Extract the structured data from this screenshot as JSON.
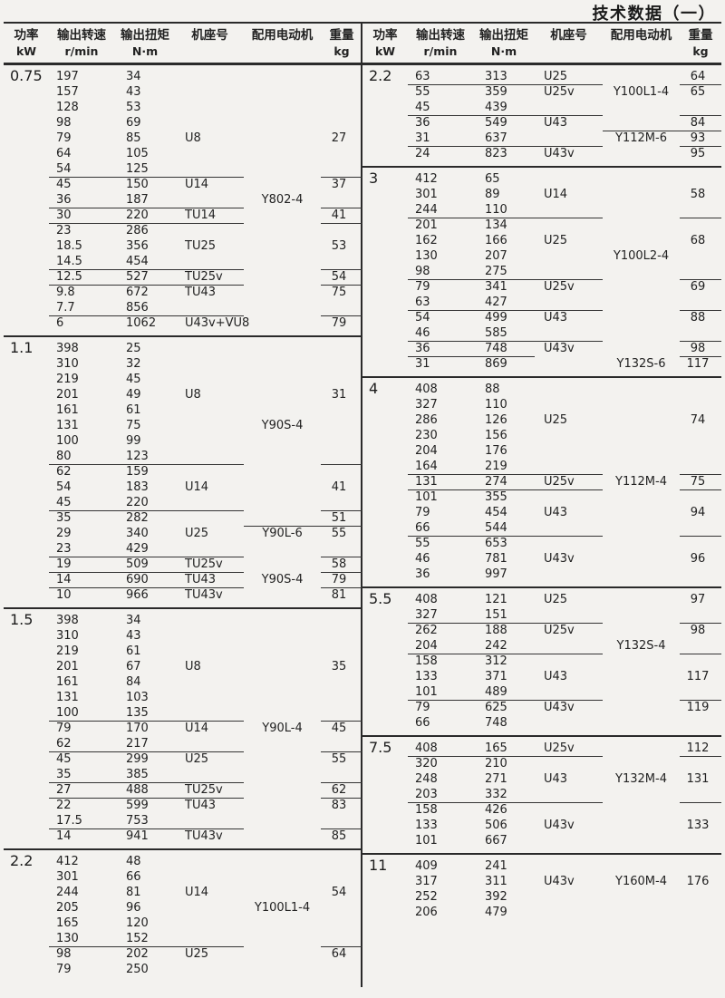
{
  "title": "技术数据（一）",
  "colors": {
    "ink": "#2a2a2a",
    "paper": "#f3f2ef"
  },
  "header": {
    "cols": [
      {
        "l1": "功率",
        "l2": "kW"
      },
      {
        "l1": "输出转速",
        "l2": "r/min"
      },
      {
        "l1": "输出扭矩",
        "l2": "N·m"
      },
      {
        "l1": "机座号",
        "l2": ""
      },
      {
        "l1": "配用电动机",
        "l2": ""
      },
      {
        "l1": "重量",
        "l2": "kg"
      }
    ]
  },
  "table": {
    "left_sections": [
      {
        "power": "0.75",
        "rows": [
          {
            "s": "197",
            "t": "34"
          },
          {
            "s": "157",
            "t": "43"
          },
          {
            "s": "128",
            "t": "53"
          },
          {
            "s": "98",
            "t": "69"
          },
          {
            "s": "79",
            "t": "85",
            "f": "U8",
            "w": "27"
          },
          {
            "s": "64",
            "t": "105"
          },
          {
            "s": "54",
            "t": "125",
            "L": "ld lw"
          },
          {
            "s": "45",
            "t": "150",
            "f": "U14",
            "w": "37"
          },
          {
            "s": "36",
            "t": "187",
            "m": "Y802-4",
            "L": "ld lw"
          },
          {
            "s": "30",
            "t": "220",
            "f": "TU14",
            "w": "41",
            "L": "ld lw"
          },
          {
            "s": "23",
            "t": "286"
          },
          {
            "s": "18.5",
            "t": "356",
            "f": "TU25",
            "w": "53"
          },
          {
            "s": "14.5",
            "t": "454",
            "L": "ld lw"
          },
          {
            "s": "12.5",
            "t": "527",
            "f": "TU25v",
            "w": "54",
            "L": "ld lw"
          },
          {
            "s": "9.8",
            "t": "672",
            "f": "TU43",
            "w": "75"
          },
          {
            "s": "7.7",
            "t": "856",
            "L": "ld lw"
          },
          {
            "s": "6",
            "t": "1062",
            "f": "U43v+VU8",
            "w": "79"
          }
        ]
      },
      {
        "power": "1.1",
        "rows": [
          {
            "s": "398",
            "t": "25"
          },
          {
            "s": "310",
            "t": "32"
          },
          {
            "s": "219",
            "t": "45"
          },
          {
            "s": "201",
            "t": "49",
            "f": "U8",
            "w": "31"
          },
          {
            "s": "161",
            "t": "61"
          },
          {
            "s": "131",
            "t": "75",
            "m": "Y90S-4"
          },
          {
            "s": "100",
            "t": "99"
          },
          {
            "s": "80",
            "t": "123",
            "L": "ld lw"
          },
          {
            "s": "62",
            "t": "159"
          },
          {
            "s": "54",
            "t": "183",
            "f": "U14",
            "w": "41"
          },
          {
            "s": "45",
            "t": "220",
            "L": "ld lw"
          },
          {
            "s": "35",
            "t": "282",
            "w": "51",
            "L": "lm lw"
          },
          {
            "s": "29",
            "t": "340",
            "f": "U25",
            "m": "Y90L-6",
            "w": "55"
          },
          {
            "s": "23",
            "t": "429",
            "L": "ld lw"
          },
          {
            "s": "19",
            "t": "509",
            "f": "TU25v",
            "w": "58",
            "L": "ld lw"
          },
          {
            "s": "14",
            "t": "690",
            "f": "TU43",
            "m": "Y90S-4",
            "w": "79",
            "L": "ld lw"
          },
          {
            "s": "10",
            "t": "966",
            "f": "TU43v",
            "w": "81"
          }
        ]
      },
      {
        "power": "1.5",
        "rows": [
          {
            "s": "398",
            "t": "34"
          },
          {
            "s": "310",
            "t": "43"
          },
          {
            "s": "219",
            "t": "61"
          },
          {
            "s": "201",
            "t": "67",
            "f": "U8",
            "w": "35"
          },
          {
            "s": "161",
            "t": "84"
          },
          {
            "s": "131",
            "t": "103"
          },
          {
            "s": "100",
            "t": "135",
            "L": "ld lw"
          },
          {
            "s": "79",
            "t": "170",
            "f": "U14",
            "m": "Y90L-4",
            "w": "45"
          },
          {
            "s": "62",
            "t": "217",
            "L": "ld lw"
          },
          {
            "s": "45",
            "t": "299",
            "f": "U25",
            "w": "55"
          },
          {
            "s": "35",
            "t": "385",
            "L": "ld lw"
          },
          {
            "s": "27",
            "t": "488",
            "f": "TU25v",
            "w": "62",
            "L": "ld lw"
          },
          {
            "s": "22",
            "t": "599",
            "f": "TU43",
            "w": "83"
          },
          {
            "s": "17.5",
            "t": "753",
            "L": "ld lw"
          },
          {
            "s": "14",
            "t": "941",
            "f": "TU43v",
            "w": "85"
          }
        ]
      },
      {
        "power": "2.2",
        "rows": [
          {
            "s": "412",
            "t": "48"
          },
          {
            "s": "301",
            "t": "66"
          },
          {
            "s": "244",
            "t": "81",
            "f": "U14",
            "w": "54"
          },
          {
            "s": "205",
            "t": "96",
            "m": "Y100L1-4"
          },
          {
            "s": "165",
            "t": "120"
          },
          {
            "s": "130",
            "t": "152",
            "L": "ld lw"
          },
          {
            "s": "98",
            "t": "202",
            "f": "U25",
            "w": "64"
          },
          {
            "s": "79",
            "t": "250"
          }
        ]
      }
    ],
    "right_sections": [
      {
        "power": "2.2",
        "rows": [
          {
            "s": "63",
            "t": "313",
            "f": "U25",
            "w": "64",
            "L": "ld lw"
          },
          {
            "s": "55",
            "t": "359",
            "f": "U25v",
            "m": "Y100L1-4",
            "w": "65"
          },
          {
            "s": "45",
            "t": "439",
            "L": "ld lw"
          },
          {
            "s": "36",
            "t": "549",
            "f": "U43",
            "w": "84",
            "L": "lm lw"
          },
          {
            "s": "31",
            "t": "637",
            "m": "Y112M-6",
            "w": "93",
            "L": "ld lw"
          },
          {
            "s": "24",
            "t": "823",
            "f": "U43v",
            "w": "95"
          }
        ]
      },
      {
        "power": "3",
        "rows": [
          {
            "s": "412",
            "t": "65"
          },
          {
            "s": "301",
            "t": "89",
            "f": "U14",
            "w": "58"
          },
          {
            "s": "244",
            "t": "110",
            "L": "ld lw"
          },
          {
            "s": "201",
            "t": "134"
          },
          {
            "s": "162",
            "t": "166",
            "f": "U25",
            "w": "68"
          },
          {
            "s": "130",
            "t": "207",
            "m": "Y100L2-4"
          },
          {
            "s": "98",
            "t": "275",
            "L": "ld lw"
          },
          {
            "s": "79",
            "t": "341",
            "f": "U25v",
            "w": "69"
          },
          {
            "s": "63",
            "t": "427",
            "L": "ld lw"
          },
          {
            "s": "54",
            "t": "499",
            "f": "U43",
            "w": "88"
          },
          {
            "s": "46",
            "t": "585",
            "L": "ld lw"
          },
          {
            "s": "36",
            "t": "748",
            "f": "U43v",
            "w": "98",
            "L": "lds lw"
          },
          {
            "s": "31",
            "t": "869",
            "m": "Y132S-6",
            "w": "117"
          }
        ]
      },
      {
        "power": "4",
        "rows": [
          {
            "s": "408",
            "t": "88"
          },
          {
            "s": "327",
            "t": "110"
          },
          {
            "s": "286",
            "t": "126",
            "f": "U25",
            "w": "74"
          },
          {
            "s": "230",
            "t": "156"
          },
          {
            "s": "204",
            "t": "176"
          },
          {
            "s": "164",
            "t": "219",
            "L": "ld lw"
          },
          {
            "s": "131",
            "t": "274",
            "f": "U25v",
            "m": "Y112M-4",
            "w": "75",
            "L": "ld lw"
          },
          {
            "s": "101",
            "t": "355"
          },
          {
            "s": "79",
            "t": "454",
            "f": "U43",
            "w": "94"
          },
          {
            "s": "66",
            "t": "544",
            "L": "ld lw"
          },
          {
            "s": "55",
            "t": "653"
          },
          {
            "s": "46",
            "t": "781",
            "f": "U43v",
            "w": "96"
          },
          {
            "s": "36",
            "t": "997"
          }
        ]
      },
      {
        "power": "5.5",
        "rows": [
          {
            "s": "408",
            "t": "121",
            "f": "U25",
            "w": "97"
          },
          {
            "s": "327",
            "t": "151",
            "L": "ld lw"
          },
          {
            "s": "262",
            "t": "188",
            "f": "U25v",
            "w": "98"
          },
          {
            "s": "204",
            "t": "242",
            "m": "Y132S-4",
            "L": "ld lw"
          },
          {
            "s": "158",
            "t": "312"
          },
          {
            "s": "133",
            "t": "371",
            "f": "U43",
            "w": "117"
          },
          {
            "s": "101",
            "t": "489",
            "L": "ld lw"
          },
          {
            "s": "79",
            "t": "625",
            "f": "U43v",
            "w": "119"
          },
          {
            "s": "66",
            "t": "748"
          }
        ]
      },
      {
        "power": "7.5",
        "rows": [
          {
            "s": "408",
            "t": "165",
            "f": "U25v",
            "w": "112",
            "L": "ld lw"
          },
          {
            "s": "320",
            "t": "210"
          },
          {
            "s": "248",
            "t": "271",
            "f": "U43",
            "m": "Y132M-4",
            "w": "131"
          },
          {
            "s": "203",
            "t": "332",
            "L": "ld lw"
          },
          {
            "s": "158",
            "t": "426"
          },
          {
            "s": "133",
            "t": "506",
            "f": "U43v",
            "w": "133"
          },
          {
            "s": "101",
            "t": "667"
          }
        ]
      },
      {
        "power": "11",
        "rows": [
          {
            "s": "409",
            "t": "241"
          },
          {
            "s": "317",
            "t": "311",
            "f": "U43v",
            "m": "Y160M-4",
            "w": "176"
          },
          {
            "s": "252",
            "t": "392"
          },
          {
            "s": "206",
            "t": "479"
          }
        ]
      }
    ]
  }
}
